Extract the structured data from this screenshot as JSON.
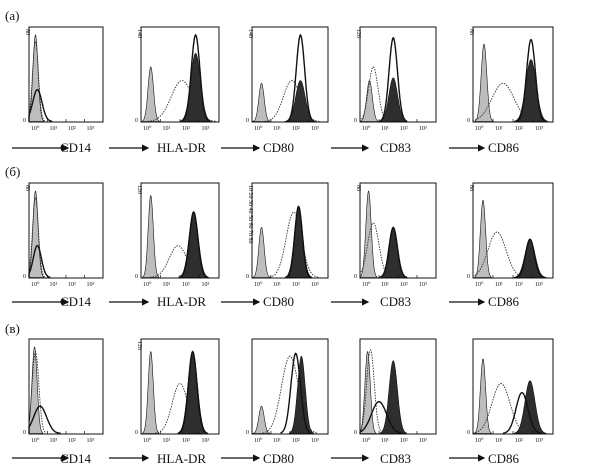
{
  "panels": [
    {
      "label": "(a)",
      "ymax": "80",
      "ymax_by_chart": [
        "80",
        "140",
        "140",
        "120",
        "80"
      ]
    },
    {
      "label": "(б)",
      "ymax": "80",
      "ymax_by_chart": [
        "80",
        "120",
        "10 20 30 40 50 60 70 80",
        "80",
        "80"
      ]
    },
    {
      "label": "(в)",
      "ymax": "80",
      "ymax_by_chart": [
        "",
        "120",
        "",
        "",
        ""
      ]
    }
  ],
  "markers": [
    "CD14",
    "HLA-DR",
    "CD80",
    "CD83",
    "CD86"
  ],
  "x_ticks": [
    "10⁰",
    "10¹",
    "10²",
    "10³"
  ],
  "chart_data": {
    "type": "area",
    "x_scale": "log",
    "x_range": [
      1,
      10000
    ],
    "x_ticks": [
      "10⁰",
      "10¹",
      "10²",
      "10³"
    ],
    "series_styles": [
      {
        "style": "light-gray-fill",
        "color": "#bdbdbd"
      },
      {
        "style": "dotted-line",
        "color": "#333333"
      },
      {
        "style": "solid-line",
        "color": "#111111"
      },
      {
        "style": "dark-fill",
        "color": "#2e2e2e"
      }
    ],
    "histograms": [
      [
        {
          "marker": "CD14",
          "ymax": 80,
          "peaks": [
            {
              "logx": 0.35,
              "h": 0.95,
              "w": 0.14,
              "style": "light-gray-fill"
            },
            {
              "logx": 0.35,
              "h": 0.88,
              "w": 0.16,
              "style": "dotted-line"
            },
            {
              "logx": 0.45,
              "h": 0.35,
              "w": 0.25,
              "style": "solid-line"
            }
          ]
        },
        {
          "marker": "HLA-DR",
          "ymax": 140,
          "peaks": [
            {
              "logx": 0.5,
              "h": 0.6,
              "w": 0.14,
              "style": "light-gray-fill"
            },
            {
              "logx": 2.1,
              "h": 0.45,
              "w": 0.55,
              "style": "dotted-line"
            },
            {
              "logx": 2.8,
              "h": 0.95,
              "w": 0.22,
              "style": "solid-line"
            },
            {
              "logx": 2.8,
              "h": 0.75,
              "w": 0.25,
              "style": "dark-fill"
            }
          ]
        },
        {
          "marker": "CD80",
          "ymax": 140,
          "peaks": [
            {
              "logx": 0.5,
              "h": 0.42,
              "w": 0.14,
              "style": "light-gray-fill"
            },
            {
              "logx": 2.1,
              "h": 0.45,
              "w": 0.45,
              "style": "dotted-line"
            },
            {
              "logx": 2.55,
              "h": 0.95,
              "w": 0.22,
              "style": "solid-line"
            },
            {
              "logx": 2.55,
              "h": 0.45,
              "w": 0.25,
              "style": "dark-fill"
            }
          ]
        },
        {
          "marker": "CD83",
          "ymax": 120,
          "peaks": [
            {
              "logx": 0.5,
              "h": 0.45,
              "w": 0.15,
              "style": "light-gray-fill"
            },
            {
              "logx": 0.7,
              "h": 0.6,
              "w": 0.25,
              "style": "dotted-line"
            },
            {
              "logx": 1.75,
              "h": 0.92,
              "w": 0.22,
              "style": "solid-line"
            },
            {
              "logx": 1.75,
              "h": 0.48,
              "w": 0.23,
              "style": "dark-fill"
            }
          ]
        },
        {
          "marker": "CD86",
          "ymax": 80,
          "peaks": [
            {
              "logx": 0.55,
              "h": 0.85,
              "w": 0.14,
              "style": "light-gray-fill"
            },
            {
              "logx": 1.5,
              "h": 0.42,
              "w": 0.55,
              "style": "dotted-line"
            },
            {
              "logx": 2.9,
              "h": 0.9,
              "w": 0.22,
              "style": "solid-line"
            },
            {
              "logx": 2.9,
              "h": 0.68,
              "w": 0.26,
              "style": "dark-fill"
            }
          ]
        }
      ],
      [
        {
          "marker": "CD14",
          "ymax": 80,
          "peaks": [
            {
              "logx": 0.35,
              "h": 0.95,
              "w": 0.14,
              "style": "light-gray-fill"
            },
            {
              "logx": 0.35,
              "h": 0.88,
              "w": 0.16,
              "style": "dotted-line"
            },
            {
              "logx": 0.45,
              "h": 0.35,
              "w": 0.22,
              "style": "solid-line"
            }
          ]
        },
        {
          "marker": "HLA-DR",
          "ymax": 120,
          "peaks": [
            {
              "logx": 0.5,
              "h": 0.9,
              "w": 0.13,
              "style": "light-gray-fill"
            },
            {
              "logx": 1.9,
              "h": 0.35,
              "w": 0.45,
              "style": "dotted-line"
            },
            {
              "logx": 2.7,
              "h": 0.72,
              "w": 0.22,
              "style": "solid-line"
            },
            {
              "logx": 2.7,
              "h": 0.72,
              "w": 0.24,
              "style": "dark-fill"
            }
          ]
        },
        {
          "marker": "CD80",
          "ymax": 80,
          "peaks": [
            {
              "logx": 0.5,
              "h": 0.55,
              "w": 0.14,
              "style": "light-gray-fill"
            },
            {
              "logx": 2.2,
              "h": 0.72,
              "w": 0.4,
              "style": "dotted-line"
            },
            {
              "logx": 2.45,
              "h": 0.78,
              "w": 0.2,
              "style": "solid-line"
            },
            {
              "logx": 2.45,
              "h": 0.78,
              "w": 0.22,
              "style": "dark-fill"
            }
          ]
        },
        {
          "marker": "CD83",
          "ymax": 80,
          "peaks": [
            {
              "logx": 0.45,
              "h": 0.95,
              "w": 0.14,
              "style": "light-gray-fill"
            },
            {
              "logx": 0.7,
              "h": 0.6,
              "w": 0.3,
              "style": "dotted-line"
            },
            {
              "logx": 1.75,
              "h": 0.55,
              "w": 0.22,
              "style": "solid-line"
            },
            {
              "logx": 1.75,
              "h": 0.55,
              "w": 0.23,
              "style": "dark-fill"
            }
          ]
        },
        {
          "marker": "CD86",
          "ymax": 80,
          "peaks": [
            {
              "logx": 0.5,
              "h": 0.85,
              "w": 0.13,
              "style": "light-gray-fill"
            },
            {
              "logx": 1.2,
              "h": 0.5,
              "w": 0.45,
              "style": "dotted-line"
            },
            {
              "logx": 2.85,
              "h": 0.42,
              "w": 0.22,
              "style": "solid-line"
            },
            {
              "logx": 2.85,
              "h": 0.42,
              "w": 0.25,
              "style": "dark-fill"
            }
          ]
        }
      ],
      [
        {
          "marker": "CD14",
          "ymax": 80,
          "peaks": [
            {
              "logx": 0.3,
              "h": 0.95,
              "w": 0.14,
              "style": "light-gray-fill"
            },
            {
              "logx": 0.35,
              "h": 0.9,
              "w": 0.18,
              "style": "dotted-line"
            },
            {
              "logx": 0.6,
              "h": 0.3,
              "w": 0.35,
              "style": "solid-line"
            }
          ]
        },
        {
          "marker": "HLA-DR",
          "ymax": 120,
          "peaks": [
            {
              "logx": 0.5,
              "h": 0.9,
              "w": 0.13,
              "style": "light-gray-fill"
            },
            {
              "logx": 2.0,
              "h": 0.55,
              "w": 0.4,
              "style": "dotted-line"
            },
            {
              "logx": 2.65,
              "h": 0.9,
              "w": 0.22,
              "style": "solid-line"
            },
            {
              "logx": 2.65,
              "h": 0.9,
              "w": 0.24,
              "style": "dark-fill"
            }
          ]
        },
        {
          "marker": "CD80",
          "ymax": 80,
          "peaks": [
            {
              "logx": 0.5,
              "h": 0.3,
              "w": 0.14,
              "style": "light-gray-fill"
            },
            {
              "logx": 2.0,
              "h": 0.85,
              "w": 0.45,
              "style": "dotted-line"
            },
            {
              "logx": 2.3,
              "h": 0.88,
              "w": 0.25,
              "style": "solid-line"
            },
            {
              "logx": 2.6,
              "h": 0.85,
              "w": 0.2,
              "style": "dark-fill"
            }
          ]
        },
        {
          "marker": "CD83",
          "ymax": 80,
          "peaks": [
            {
              "logx": 0.4,
              "h": 0.9,
              "w": 0.14,
              "style": "light-gray-fill"
            },
            {
              "logx": 0.55,
              "h": 0.92,
              "w": 0.2,
              "style": "dotted-line"
            },
            {
              "logx": 1.0,
              "h": 0.35,
              "w": 0.4,
              "style": "solid-line"
            },
            {
              "logx": 1.75,
              "h": 0.8,
              "w": 0.22,
              "style": "dark-fill"
            }
          ]
        },
        {
          "marker": "CD86",
          "ymax": 80,
          "peaks": [
            {
              "logx": 0.5,
              "h": 0.82,
              "w": 0.13,
              "style": "light-gray-fill"
            },
            {
              "logx": 1.4,
              "h": 0.55,
              "w": 0.45,
              "style": "dotted-line"
            },
            {
              "logx": 2.45,
              "h": 0.45,
              "w": 0.3,
              "style": "solid-line"
            },
            {
              "logx": 2.85,
              "h": 0.58,
              "w": 0.25,
              "style": "dark-fill"
            }
          ]
        }
      ]
    ]
  }
}
